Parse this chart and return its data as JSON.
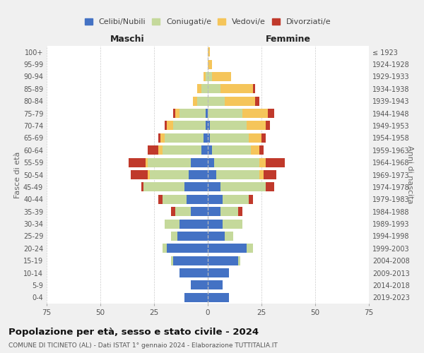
{
  "age_groups": [
    "0-4",
    "5-9",
    "10-14",
    "15-19",
    "20-24",
    "25-29",
    "30-34",
    "35-39",
    "40-44",
    "45-49",
    "50-54",
    "55-59",
    "60-64",
    "65-69",
    "70-74",
    "75-79",
    "80-84",
    "85-89",
    "90-94",
    "95-99",
    "100+"
  ],
  "birth_years": [
    "2019-2023",
    "2014-2018",
    "2009-2013",
    "2004-2008",
    "1999-2003",
    "1994-1998",
    "1989-1993",
    "1984-1988",
    "1979-1983",
    "1974-1978",
    "1969-1973",
    "1964-1968",
    "1959-1963",
    "1954-1958",
    "1949-1953",
    "1944-1948",
    "1939-1943",
    "1934-1938",
    "1929-1933",
    "1924-1928",
    "≤ 1923"
  ],
  "male": {
    "celibi": [
      11,
      8,
      13,
      16,
      19,
      14,
      13,
      8,
      10,
      11,
      9,
      8,
      3,
      2,
      1,
      1,
      0,
      0,
      0,
      0,
      0
    ],
    "coniugati": [
      0,
      0,
      0,
      1,
      2,
      3,
      7,
      7,
      11,
      19,
      18,
      20,
      18,
      18,
      15,
      12,
      5,
      3,
      1,
      0,
      0
    ],
    "vedovi": [
      0,
      0,
      0,
      0,
      0,
      0,
      0,
      0,
      0,
      0,
      1,
      1,
      2,
      2,
      3,
      2,
      2,
      2,
      1,
      0,
      0
    ],
    "divorziati": [
      0,
      0,
      0,
      0,
      0,
      0,
      0,
      2,
      2,
      1,
      8,
      8,
      5,
      1,
      1,
      1,
      0,
      0,
      0,
      0,
      0
    ]
  },
  "female": {
    "nubili": [
      10,
      7,
      10,
      14,
      18,
      8,
      7,
      6,
      7,
      6,
      4,
      3,
      2,
      1,
      1,
      0,
      0,
      0,
      0,
      0,
      0
    ],
    "coniugate": [
      0,
      0,
      0,
      1,
      3,
      4,
      9,
      8,
      12,
      21,
      20,
      21,
      18,
      18,
      17,
      16,
      8,
      6,
      2,
      0,
      0
    ],
    "vedove": [
      0,
      0,
      0,
      0,
      0,
      0,
      0,
      0,
      0,
      0,
      2,
      3,
      4,
      6,
      9,
      12,
      14,
      15,
      9,
      2,
      1
    ],
    "divorziate": [
      0,
      0,
      0,
      0,
      0,
      0,
      0,
      2,
      2,
      4,
      6,
      9,
      2,
      2,
      2,
      3,
      2,
      1,
      0,
      0,
      0
    ]
  },
  "colors": {
    "celibi": "#4472c4",
    "coniugati": "#c5d99b",
    "vedovi": "#f5c55a",
    "divorziati": "#c0392b"
  },
  "title": "Popolazione per età, sesso e stato civile - 2024",
  "subtitle": "COMUNE DI TICINETO (AL) - Dati ISTAT 1° gennaio 2024 - Elaborazione TUTTITALIA.IT",
  "xlabel_left": "Maschi",
  "xlabel_right": "Femmine",
  "ylabel_left": "Fasce di età",
  "ylabel_right": "Anni di nascita",
  "xlim": 75,
  "legend_labels": [
    "Celibi/Nubili",
    "Coniugati/e",
    "Vedovi/e",
    "Divorziati/e"
  ],
  "bg_color": "#f0f0f0",
  "plot_bg_color": "#ffffff"
}
